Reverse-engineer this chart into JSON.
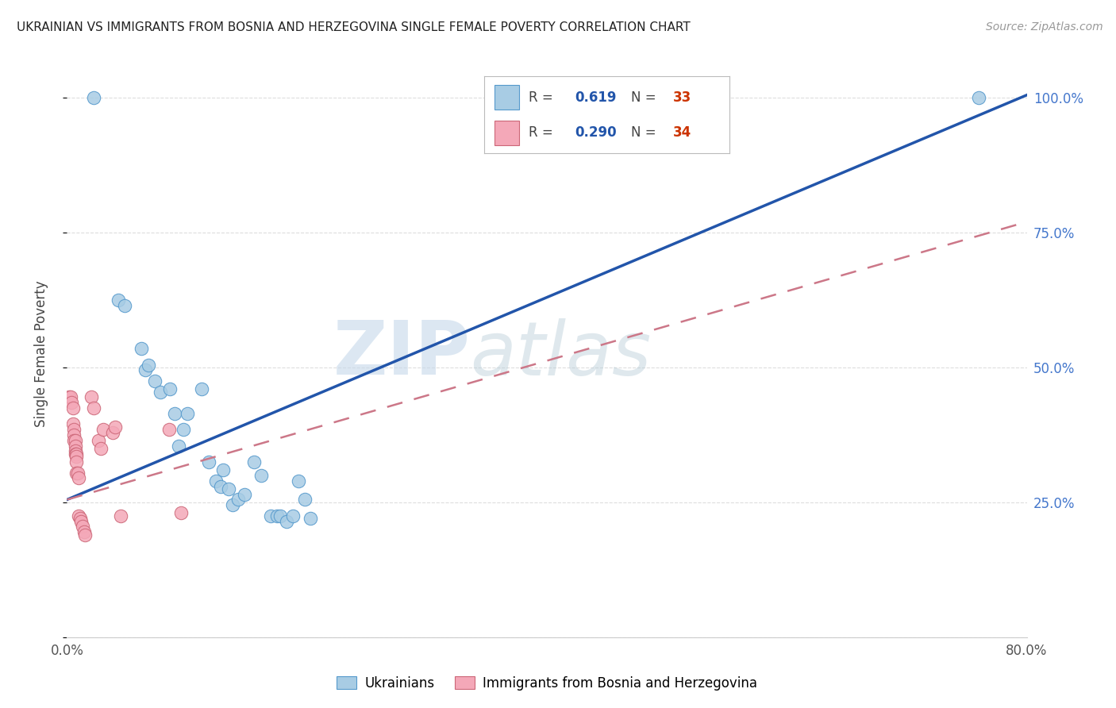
{
  "title": "UKRAINIAN VS IMMIGRANTS FROM BOSNIA AND HERZEGOVINA SINGLE FEMALE POVERTY CORRELATION CHART",
  "source": "Source: ZipAtlas.com",
  "ylabel": "Single Female Poverty",
  "xlim": [
    0.0,
    0.8
  ],
  "ylim": [
    0.0,
    1.05
  ],
  "color_blue": "#a8cce4",
  "color_blue_edge": "#5599cc",
  "color_pink": "#f4a8b8",
  "color_pink_edge": "#cc6677",
  "color_blue_line": "#2255aa",
  "color_pink_line": "#cc7788",
  "watermark_zip": "ZIP",
  "watermark_atlas": "atlas",
  "background_color": "#ffffff",
  "grid_color": "#dddddd",
  "blue_points": [
    [
      0.022,
      1.0
    ],
    [
      0.043,
      0.625
    ],
    [
      0.048,
      0.615
    ],
    [
      0.062,
      0.535
    ],
    [
      0.065,
      0.495
    ],
    [
      0.068,
      0.505
    ],
    [
      0.073,
      0.475
    ],
    [
      0.078,
      0.455
    ],
    [
      0.086,
      0.46
    ],
    [
      0.09,
      0.415
    ],
    [
      0.093,
      0.355
    ],
    [
      0.097,
      0.385
    ],
    [
      0.1,
      0.415
    ],
    [
      0.112,
      0.46
    ],
    [
      0.118,
      0.325
    ],
    [
      0.124,
      0.29
    ],
    [
      0.128,
      0.28
    ],
    [
      0.13,
      0.31
    ],
    [
      0.135,
      0.275
    ],
    [
      0.138,
      0.245
    ],
    [
      0.143,
      0.255
    ],
    [
      0.148,
      0.265
    ],
    [
      0.156,
      0.325
    ],
    [
      0.162,
      0.3
    ],
    [
      0.17,
      0.225
    ],
    [
      0.175,
      0.225
    ],
    [
      0.178,
      0.225
    ],
    [
      0.183,
      0.215
    ],
    [
      0.188,
      0.225
    ],
    [
      0.193,
      0.29
    ],
    [
      0.198,
      0.255
    ],
    [
      0.203,
      0.22
    ],
    [
      0.76,
      1.0
    ]
  ],
  "pink_points": [
    [
      0.002,
      0.445
    ],
    [
      0.003,
      0.445
    ],
    [
      0.004,
      0.435
    ],
    [
      0.005,
      0.425
    ],
    [
      0.005,
      0.395
    ],
    [
      0.006,
      0.385
    ],
    [
      0.006,
      0.375
    ],
    [
      0.006,
      0.365
    ],
    [
      0.007,
      0.365
    ],
    [
      0.007,
      0.355
    ],
    [
      0.007,
      0.345
    ],
    [
      0.007,
      0.34
    ],
    [
      0.008,
      0.34
    ],
    [
      0.008,
      0.335
    ],
    [
      0.008,
      0.325
    ],
    [
      0.008,
      0.305
    ],
    [
      0.009,
      0.305
    ],
    [
      0.01,
      0.295
    ],
    [
      0.01,
      0.225
    ],
    [
      0.011,
      0.22
    ],
    [
      0.012,
      0.215
    ],
    [
      0.013,
      0.205
    ],
    [
      0.014,
      0.195
    ],
    [
      0.015,
      0.19
    ],
    [
      0.02,
      0.445
    ],
    [
      0.022,
      0.425
    ],
    [
      0.026,
      0.365
    ],
    [
      0.028,
      0.35
    ],
    [
      0.03,
      0.385
    ],
    [
      0.038,
      0.38
    ],
    [
      0.04,
      0.39
    ],
    [
      0.045,
      0.225
    ],
    [
      0.085,
      0.385
    ],
    [
      0.095,
      0.23
    ]
  ],
  "blue_line": [
    [
      0.0,
      0.255
    ],
    [
      0.8,
      1.005
    ]
  ],
  "pink_line": [
    [
      0.0,
      0.255
    ],
    [
      0.8,
      0.77
    ]
  ]
}
